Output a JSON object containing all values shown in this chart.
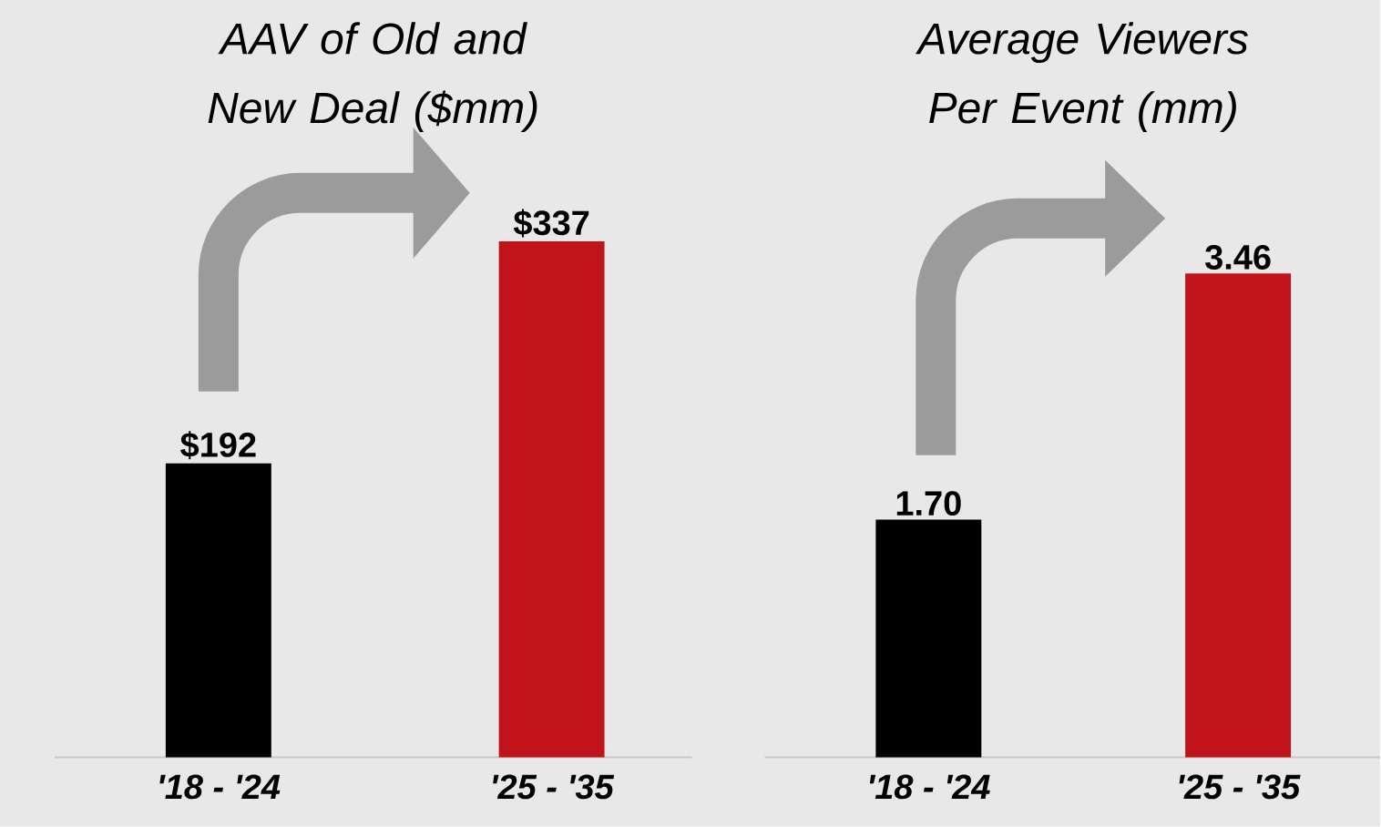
{
  "chart_data": [
    {
      "type": "bar",
      "title": "AAV of Old and New Deal ($mm)",
      "categories": [
        "'18 - '24",
        "'25 - '35"
      ],
      "values": [
        192,
        337
      ],
      "colors": [
        "#000000",
        "#c0141a"
      ],
      "value_labels": [
        "$192",
        "$337"
      ]
    },
    {
      "type": "bar",
      "title": "Average Viewers Per Event (mm)",
      "categories": [
        "'18 - '24",
        "'25 - '35"
      ],
      "values": [
        1.7,
        3.46
      ],
      "colors": [
        "#000000",
        "#c0141a"
      ],
      "value_labels": [
        "1.70",
        "3.46"
      ]
    }
  ]
}
